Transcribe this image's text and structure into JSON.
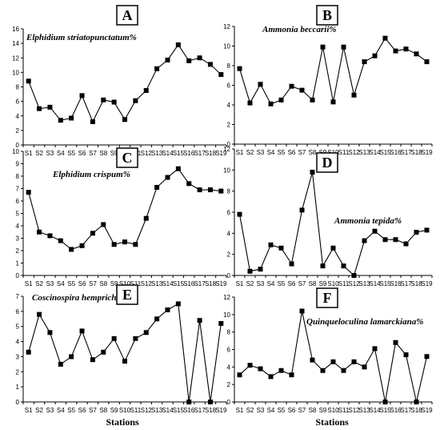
{
  "figure": {
    "xlabel_left": "Stations",
    "xlabel_right": "Stations"
  },
  "chart_data": [
    {
      "type": "line",
      "panel_letter": "A",
      "title": "Elphidium striatopunctatum%",
      "categories": [
        "S1",
        "S2",
        "S3",
        "S4",
        "S5",
        "S6",
        "S7",
        "S8",
        "S9",
        "S10",
        "S11",
        "S12",
        "S13",
        "S14",
        "S15",
        "S16",
        "S17",
        "S18",
        "S19"
      ],
      "values": [
        8.8,
        5.0,
        5.2,
        3.4,
        3.7,
        6.8,
        3.2,
        6.2,
        5.9,
        3.5,
        6.1,
        7.5,
        10.5,
        11.7,
        13.8,
        11.6,
        12.0,
        11.1,
        9.7
      ],
      "ylim": [
        0,
        16
      ],
      "yticks": [
        0,
        2,
        4,
        6,
        8,
        10,
        12,
        14,
        16
      ],
      "marker": "square"
    },
    {
      "type": "line",
      "panel_letter": "B",
      "title": "Ammonia beccarii%",
      "categories": [
        "S1",
        "S2",
        "S3",
        "S4",
        "S5",
        "S6",
        "S7",
        "S8",
        "S9",
        "S10",
        "S11",
        "S12",
        "S13",
        "S14",
        "S15",
        "S16",
        "S17",
        "S18",
        "S19"
      ],
      "values": [
        7.7,
        4.2,
        6.1,
        4.1,
        4.5,
        5.9,
        5.5,
        4.5,
        9.9,
        4.3,
        9.9,
        5.0,
        8.4,
        9.0,
        10.8,
        9.5,
        9.7,
        9.2,
        8.4
      ],
      "ylim": [
        0,
        12
      ],
      "yticks": [
        0,
        2,
        4,
        6,
        8,
        10,
        12
      ],
      "marker": "square"
    },
    {
      "type": "line",
      "panel_letter": "C",
      "title": "Elphidium crispum%",
      "categories": [
        "S1",
        "S2",
        "S3",
        "S4",
        "S5",
        "S6",
        "S7",
        "S8",
        "S9",
        "S10",
        "S11",
        "S12",
        "S13",
        "S14",
        "S15",
        "S16",
        "S17",
        "S18",
        "S19"
      ],
      "values": [
        6.7,
        3.5,
        3.2,
        2.8,
        2.1,
        2.4,
        3.4,
        4.1,
        2.5,
        2.7,
        2.5,
        4.6,
        7.1,
        7.9,
        8.6,
        7.4,
        6.9,
        6.9,
        6.8
      ],
      "ylim": [
        0,
        10
      ],
      "yticks": [
        0,
        1,
        2,
        3,
        4,
        5,
        6,
        7,
        8,
        9,
        10
      ],
      "marker": "square"
    },
    {
      "type": "line",
      "panel_letter": "D",
      "title": "Ammonia tepida%",
      "categories": [
        "S1",
        "S2",
        "S3",
        "S4",
        "S5",
        "S6",
        "S7",
        "S8",
        "S9",
        "S10",
        "S11",
        "S12",
        "S13",
        "S14",
        "S15",
        "S16",
        "S17",
        "S18",
        "S19"
      ],
      "values": [
        5.8,
        0.4,
        0.6,
        2.9,
        2.6,
        1.1,
        6.2,
        9.8,
        0.9,
        2.6,
        0.9,
        0.0,
        3.3,
        4.2,
        3.4,
        3.4,
        3.0,
        4.1,
        4.3
      ],
      "ylim": [
        0,
        12
      ],
      "yticks": [
        0,
        2,
        4,
        6,
        8,
        10,
        12
      ],
      "marker": "square"
    },
    {
      "type": "line",
      "panel_letter": "E",
      "title": "Coscinospira hemprichii%",
      "categories": [
        "S1",
        "S2",
        "S3",
        "S4",
        "S5",
        "S6",
        "S7",
        "S8",
        "S9",
        "S10",
        "S11",
        "S12",
        "S13",
        "S14",
        "S15",
        "S16",
        "S17",
        "S18",
        "S19"
      ],
      "values": [
        3.3,
        5.8,
        4.6,
        2.5,
        3.0,
        4.7,
        2.8,
        3.3,
        4.2,
        2.7,
        4.2,
        4.6,
        5.5,
        6.1,
        6.5,
        0.0,
        5.4,
        0.0,
        5.2
      ],
      "ylim": [
        0,
        7
      ],
      "yticks": [
        0,
        1,
        2,
        3,
        4,
        5,
        6,
        7
      ],
      "marker": "square"
    },
    {
      "type": "line",
      "panel_letter": "F",
      "title": "Quinqueloculina lamarckiana%",
      "categories": [
        "S1",
        "S2",
        "S3",
        "S4",
        "S5",
        "S6",
        "S7",
        "S8",
        "S9",
        "S10",
        "S11",
        "S12",
        "S13",
        "S14",
        "S15",
        "S16",
        "S17",
        "S18",
        "S19"
      ],
      "values": [
        3.1,
        4.2,
        3.8,
        2.9,
        3.6,
        3.1,
        10.4,
        4.8,
        3.6,
        4.6,
        3.6,
        4.6,
        4.0,
        6.1,
        0.0,
        6.8,
        5.4,
        0.0,
        5.2
      ],
      "ylim": [
        0,
        12
      ],
      "yticks": [
        0,
        2,
        4,
        6,
        8,
        10,
        12
      ],
      "marker": "square"
    }
  ]
}
